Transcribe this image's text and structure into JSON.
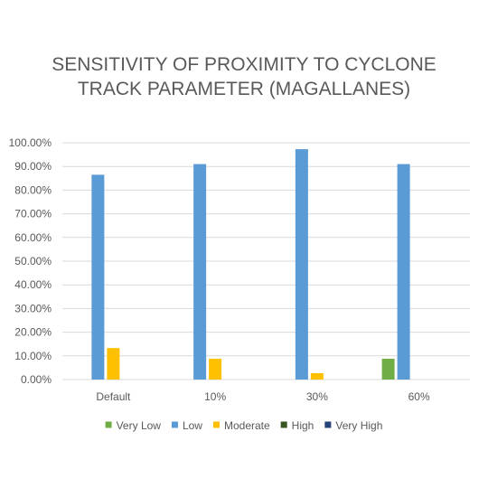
{
  "chart_data": {
    "type": "bar",
    "title_lines": [
      "SENSITIVITY OF PROXIMITY TO CYCLONE",
      "TRACK PARAMETER (MAGALLANES)"
    ],
    "categories": [
      "Default",
      "10%",
      "30%",
      "60%"
    ],
    "ylim": [
      0,
      100
    ],
    "yticks": [
      "0.00%",
      "10.00%",
      "20.00%",
      "30.00%",
      "40.00%",
      "50.00%",
      "60.00%",
      "70.00%",
      "80.00%",
      "90.00%",
      "100.00%"
    ],
    "series": [
      {
        "name": "Very Low",
        "color": "#70AD47",
        "values": [
          0,
          0,
          0,
          8.8
        ]
      },
      {
        "name": "Low",
        "color": "#5B9BD5",
        "values": [
          86.5,
          91,
          97.3,
          91
        ]
      },
      {
        "name": "Moderate",
        "color": "#FFC000",
        "values": [
          13.3,
          8.8,
          2.7,
          0
        ]
      },
      {
        "name": "High",
        "color": "#375623",
        "values": [
          0,
          0,
          0,
          0
        ]
      },
      {
        "name": "Very High",
        "color": "#264478",
        "values": [
          0,
          0,
          0,
          0
        ]
      }
    ],
    "grid": true,
    "legend_position": "bottom"
  }
}
